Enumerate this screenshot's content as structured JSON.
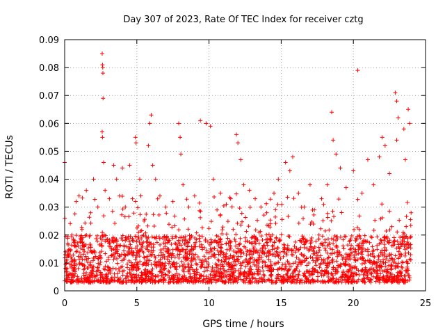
{
  "chart_data": {
    "type": "scatter",
    "title": "Day 307 of 2023, Rate Of TEC Index for receiver cztg",
    "xlabel": "GPS time / hours",
    "ylabel": "ROTI / TECUs",
    "xlim": [
      0,
      25
    ],
    "ylim": [
      0,
      0.09
    ],
    "xticks": [
      0,
      5,
      10,
      15,
      20,
      25
    ],
    "xtick_labels": [
      "0",
      "5",
      "10",
      "15",
      "20",
      "25"
    ],
    "yticks": [
      0,
      0.01,
      0.02,
      0.03,
      0.04,
      0.05,
      0.06,
      0.07,
      0.08,
      0.09
    ],
    "ytick_labels": [
      "0",
      "0.01",
      "0.02",
      "0.03",
      "0.04",
      "0.05",
      "0.06",
      "0.07",
      "0.08",
      "0.09"
    ],
    "grid": true,
    "marker": "plus",
    "color": "#ff0000",
    "series": [
      {
        "name": "ROTI",
        "x_range": [
          0,
          24
        ],
        "typical_range": [
          0.003,
          0.02
        ],
        "points": [
          [
            0.0,
            0.046
          ],
          [
            0.5,
            0.02
          ],
          [
            0.8,
            0.032
          ],
          [
            1.0,
            0.034
          ],
          [
            1.2,
            0.022
          ],
          [
            1.5,
            0.036
          ],
          [
            1.8,
            0.028
          ],
          [
            2.0,
            0.04
          ],
          [
            2.3,
            0.03
          ],
          [
            2.6,
            0.085
          ],
          [
            2.62,
            0.081
          ],
          [
            2.64,
            0.08
          ],
          [
            2.65,
            0.078
          ],
          [
            2.66,
            0.069
          ],
          [
            2.6,
            0.057
          ],
          [
            2.62,
            0.055
          ],
          [
            2.7,
            0.046
          ],
          [
            2.8,
            0.036
          ],
          [
            3.1,
            0.033
          ],
          [
            3.4,
            0.045
          ],
          [
            3.6,
            0.04
          ],
          [
            3.8,
            0.034
          ],
          [
            4.0,
            0.044
          ],
          [
            4.2,
            0.03
          ],
          [
            4.5,
            0.045
          ],
          [
            4.7,
            0.033
          ],
          [
            4.9,
            0.055
          ],
          [
            4.95,
            0.053
          ],
          [
            5.2,
            0.04
          ],
          [
            5.5,
            0.025
          ],
          [
            5.8,
            0.052
          ],
          [
            5.9,
            0.06
          ],
          [
            6.0,
            0.063
          ],
          [
            6.1,
            0.045
          ],
          [
            6.3,
            0.04
          ],
          [
            6.6,
            0.034
          ],
          [
            7.0,
            0.03
          ],
          [
            7.5,
            0.032
          ],
          [
            7.9,
            0.06
          ],
          [
            8.0,
            0.055
          ],
          [
            8.05,
            0.049
          ],
          [
            8.2,
            0.038
          ],
          [
            8.6,
            0.03
          ],
          [
            9.0,
            0.034
          ],
          [
            9.4,
            0.061
          ],
          [
            9.8,
            0.06
          ],
          [
            10.1,
            0.059
          ],
          [
            10.3,
            0.04
          ],
          [
            10.8,
            0.035
          ],
          [
            11.2,
            0.031
          ],
          [
            11.5,
            0.033
          ],
          [
            11.9,
            0.056
          ],
          [
            12.0,
            0.053
          ],
          [
            12.2,
            0.047
          ],
          [
            12.4,
            0.038
          ],
          [
            12.8,
            0.036
          ],
          [
            13.2,
            0.033
          ],
          [
            13.6,
            0.03
          ],
          [
            14.0,
            0.028
          ],
          [
            14.5,
            0.035
          ],
          [
            14.8,
            0.04
          ],
          [
            15.3,
            0.046
          ],
          [
            15.6,
            0.043
          ],
          [
            15.8,
            0.048
          ],
          [
            16.2,
            0.035
          ],
          [
            16.6,
            0.03
          ],
          [
            17.0,
            0.038
          ],
          [
            17.3,
            0.029
          ],
          [
            17.8,
            0.033
          ],
          [
            18.2,
            0.038
          ],
          [
            18.5,
            0.064
          ],
          [
            18.6,
            0.054
          ],
          [
            18.8,
            0.049
          ],
          [
            19.1,
            0.044
          ],
          [
            19.5,
            0.037
          ],
          [
            20.0,
            0.043
          ],
          [
            20.3,
            0.079
          ],
          [
            20.6,
            0.035
          ],
          [
            21.0,
            0.047
          ],
          [
            21.4,
            0.038
          ],
          [
            21.8,
            0.048
          ],
          [
            22.0,
            0.055
          ],
          [
            22.2,
            0.052
          ],
          [
            22.5,
            0.042
          ],
          [
            22.9,
            0.071
          ],
          [
            23.0,
            0.068
          ],
          [
            23.1,
            0.062
          ],
          [
            23.0,
            0.054
          ],
          [
            23.5,
            0.058
          ],
          [
            23.6,
            0.047
          ],
          [
            23.8,
            0.065
          ],
          [
            23.9,
            0.06
          ],
          [
            24.0,
            0.028
          ]
        ]
      }
    ]
  }
}
